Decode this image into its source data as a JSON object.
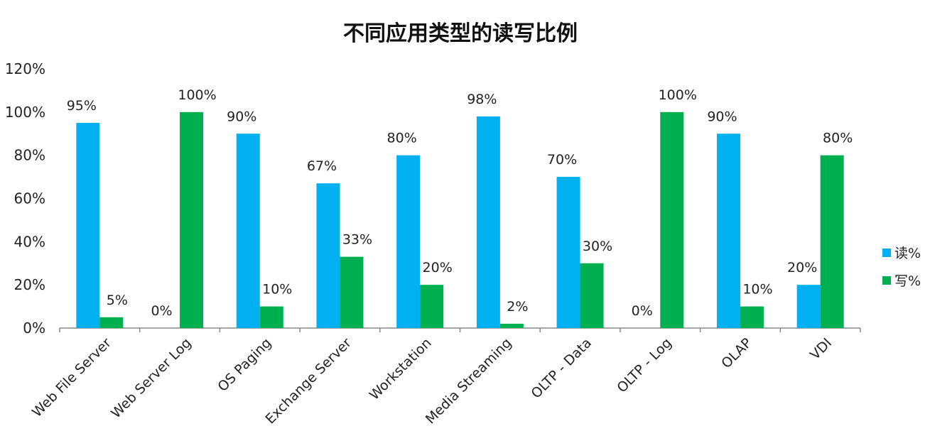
{
  "chart_data": {
    "type": "bar",
    "title": "不同应用类型的读写比例",
    "xlabel": "",
    "ylabel": "",
    "ylim": [
      0,
      120
    ],
    "yticks": [
      "0%",
      "20%",
      "40%",
      "60%",
      "80%",
      "100%",
      "120%"
    ],
    "categories": [
      "Web File Server",
      "Web Server Log",
      "OS Paging",
      "Exchange Server",
      "Workstation",
      "Media Streaming",
      "OLTP - Data",
      "OLTP - Log",
      "OLAP",
      "VDI"
    ],
    "series": [
      {
        "name": "读%",
        "color": "#00b0f0",
        "values": [
          95,
          0,
          90,
          67,
          80,
          98,
          70,
          0,
          90,
          20
        ],
        "labels": [
          "95%",
          "0%",
          "90%",
          "67%",
          "80%",
          "98%",
          "70%",
          "0%",
          "90%",
          "20%"
        ]
      },
      {
        "name": "写%",
        "color": "#00b050",
        "values": [
          5,
          100,
          10,
          33,
          20,
          2,
          30,
          100,
          10,
          80
        ],
        "labels": [
          "5%",
          "100%",
          "10%",
          "33%",
          "20%",
          "2%",
          "30%",
          "100%",
          "10%",
          "80%"
        ]
      }
    ],
    "grid": false,
    "legend": "right"
  }
}
